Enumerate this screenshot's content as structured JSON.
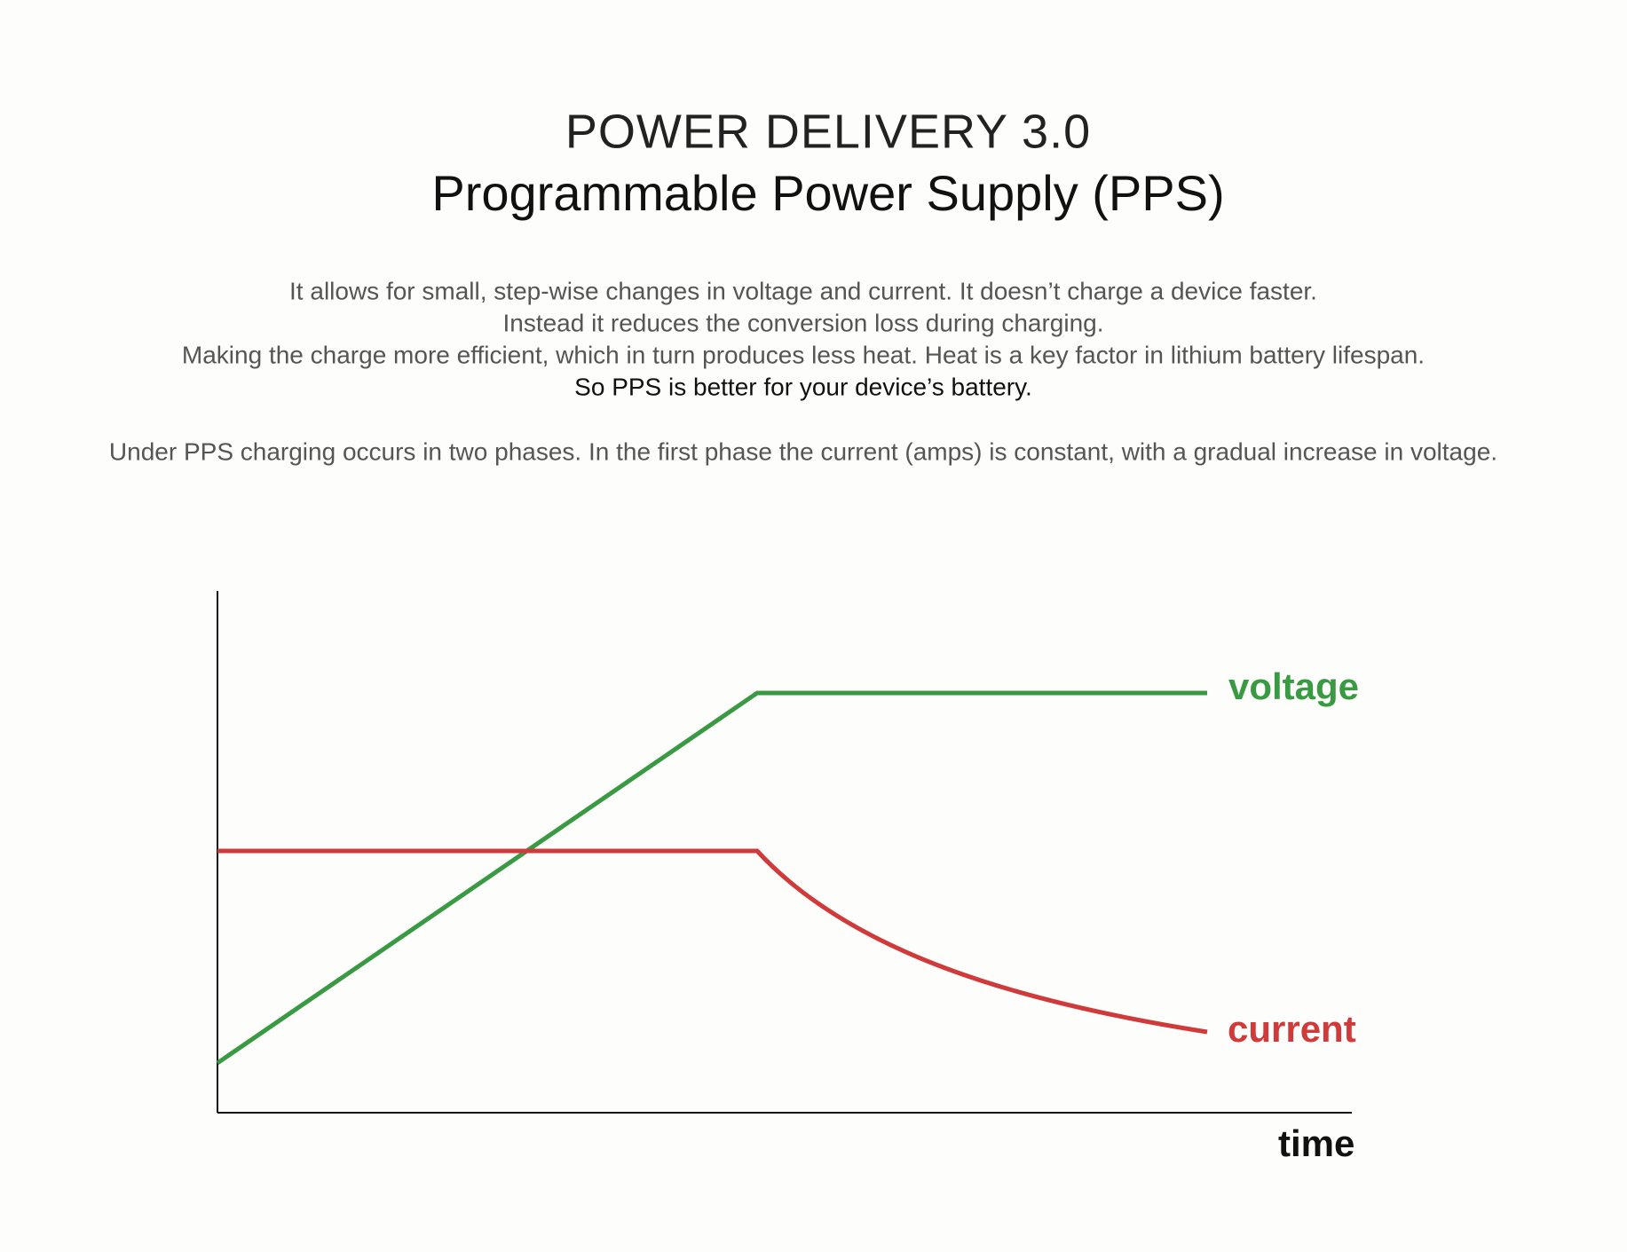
{
  "header": {
    "title": "POWER DELIVERY 3.0",
    "subtitle": "Programmable Power Supply (PPS)"
  },
  "description": {
    "lines": [
      "It allows for small, step-wise changes in voltage and current. It doesn’t charge a device faster.",
      "Instead it reduces the conversion loss during charging.",
      "Making the charge more efficient, which in turn produces less heat. Heat is a key factor in lithium battery lifespan.",
      "So PPS is better for your device’s battery."
    ],
    "phases": "Under PPS charging occurs in two phases. In the first phase the current (amps) is constant, with a gradual increase in voltage."
  },
  "diagram": {
    "voltage_label": "voltage",
    "current_label": "current",
    "x_axis_label": "time"
  }
}
